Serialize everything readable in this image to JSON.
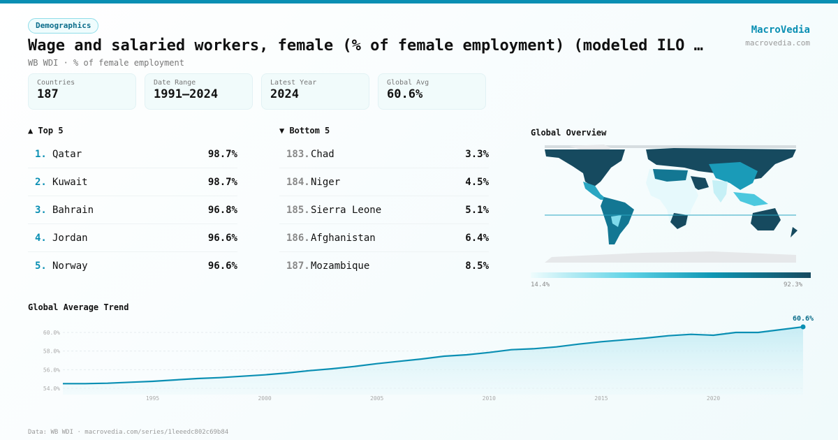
{
  "header": {
    "category": "Demographics",
    "title": "Wage and salaried workers, female (% of female employment) (modeled ILO …",
    "subtitle": "WB WDI · % of female employment",
    "brand": "MacroVedia",
    "brand_url": "macrovedia.com"
  },
  "stats": [
    {
      "label": "Countries",
      "value": "187"
    },
    {
      "label": "Date Range",
      "value": "1991–2024"
    },
    {
      "label": "Latest Year",
      "value": "2024"
    },
    {
      "label": "Global Avg",
      "value": "60.6%"
    }
  ],
  "top5": {
    "title": "▲ Top 5",
    "items": [
      {
        "rank": "1.",
        "name": "Qatar",
        "value": "98.7%"
      },
      {
        "rank": "2.",
        "name": "Kuwait",
        "value": "98.7%"
      },
      {
        "rank": "3.",
        "name": "Bahrain",
        "value": "96.8%"
      },
      {
        "rank": "4.",
        "name": "Jordan",
        "value": "96.6%"
      },
      {
        "rank": "5.",
        "name": "Norway",
        "value": "96.6%"
      }
    ]
  },
  "bottom5": {
    "title": "▼ Bottom 5",
    "items": [
      {
        "rank": "183.",
        "name": "Chad",
        "value": "3.3%"
      },
      {
        "rank": "184.",
        "name": "Niger",
        "value": "4.5%"
      },
      {
        "rank": "185.",
        "name": "Sierra Leone",
        "value": "5.1%"
      },
      {
        "rank": "186.",
        "name": "Afghanistan",
        "value": "6.4%"
      },
      {
        "rank": "187.",
        "name": "Mozambique",
        "value": "8.5%"
      }
    ]
  },
  "map": {
    "title": "Global Overview",
    "legend_min": "14.4%",
    "legend_max": "92.3%",
    "colors": [
      "#effcfd",
      "#5fd3e6",
      "#0f97b4",
      "#164a5f"
    ]
  },
  "trend": {
    "title": "Global Average Trend",
    "end_label": "60.6%"
  },
  "chart_data": {
    "type": "area",
    "x": [
      1991,
      1992,
      1993,
      1994,
      1995,
      1996,
      1997,
      1998,
      1999,
      2000,
      2001,
      2002,
      2003,
      2004,
      2005,
      2006,
      2007,
      2008,
      2009,
      2010,
      2011,
      2012,
      2013,
      2014,
      2015,
      2016,
      2017,
      2018,
      2019,
      2020,
      2021,
      2022,
      2023,
      2024
    ],
    "values": [
      54.5,
      54.5,
      54.55,
      54.65,
      54.75,
      54.9,
      55.05,
      55.15,
      55.3,
      55.45,
      55.65,
      55.9,
      56.1,
      56.35,
      56.65,
      56.9,
      57.15,
      57.45,
      57.6,
      57.85,
      58.15,
      58.25,
      58.45,
      58.75,
      59.0,
      59.2,
      59.4,
      59.65,
      59.8,
      59.7,
      60.0,
      60.0,
      60.3,
      60.6
    ],
    "yticks": [
      "54.0%",
      "56.0%",
      "58.0%",
      "60.0%"
    ],
    "ytick_values": [
      54,
      56,
      58,
      60
    ],
    "xticks": [
      1995,
      2000,
      2005,
      2010,
      2015,
      2020
    ],
    "ylim": [
      53.7,
      61
    ],
    "grid": true,
    "color": "#0a8fb3"
  },
  "footer": "Data: WB WDI · macrovedia.com/series/1leeedc802c69b84"
}
